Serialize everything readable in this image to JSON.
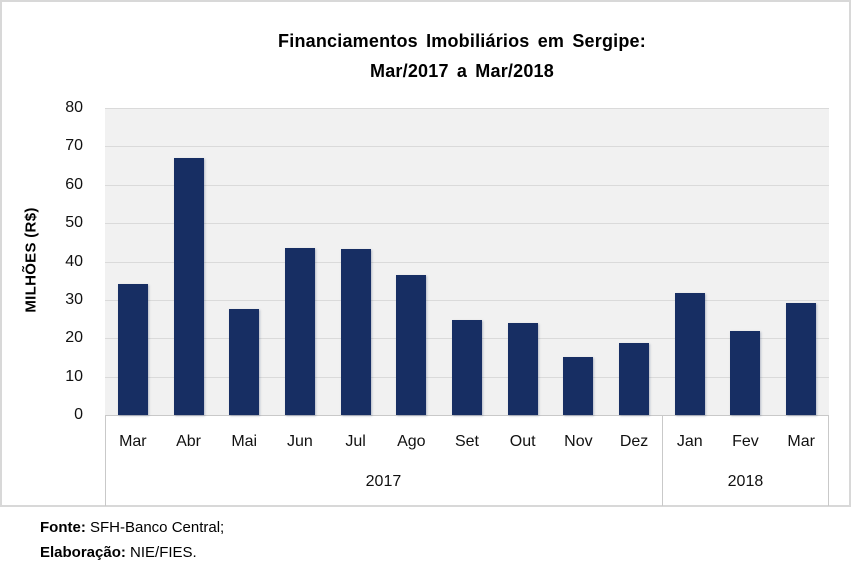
{
  "chart_data": {
    "type": "bar",
    "title_line1": "Financiamentos  Imobiliários  em Sergipe:",
    "title_line2": "Mar/2017 a Mar/2018",
    "ylabel": "MILHÕES (R$)",
    "ylim": [
      0,
      80
    ],
    "yticks": [
      0,
      10,
      20,
      30,
      40,
      50,
      60,
      70,
      80
    ],
    "grid": true,
    "legend_position": "none",
    "categories": [
      "Mar",
      "Abr",
      "Mai",
      "Jun",
      "Jul",
      "Ago",
      "Set",
      "Out",
      "Nov",
      "Dez",
      "Jan",
      "Fev",
      "Mar"
    ],
    "values": [
      34.1,
      67.1,
      27.6,
      43.6,
      43.3,
      36.5,
      24.8,
      24.1,
      15.2,
      18.8,
      31.9,
      22.0,
      29.3
    ],
    "groups": [
      {
        "label": "2017",
        "span": 10
      },
      {
        "label": "2018",
        "span": 3
      }
    ],
    "bar_color": "#172e63",
    "plot_bg": "#f1f1f1",
    "gridline_color": "#dadada"
  },
  "footer": {
    "fonte_label": "Fonte:",
    "fonte_value": "SFH-Banco Central;",
    "elaboracao_label": "Elaboração:",
    "elaboracao_value": "NIE/FIES."
  }
}
